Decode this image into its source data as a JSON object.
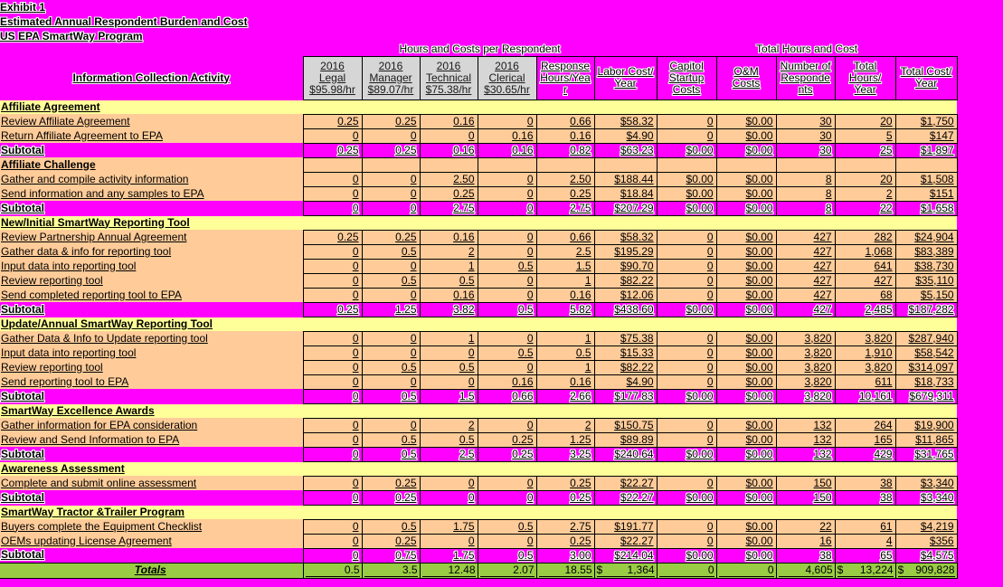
{
  "titles": [
    "Exhibit 1",
    "Estimated Annual Respondent Burden and Cost",
    "US EPA SmartWay Program"
  ],
  "colors": {
    "background": "#FF00FF",
    "section_row": "#FFFF99",
    "data_row": "#FFCC99",
    "subtotal_row": "#FF00FF",
    "totals_row": "#99CC44",
    "header_cell_bg": "#D6D6D6",
    "border": "#000000"
  },
  "table": {
    "span_headers": [
      {
        "label": "Hours and Costs per Respondent",
        "span": 6
      },
      {
        "label": "Total Hours and Cost",
        "span": 5
      }
    ],
    "columns": [
      {
        "label": "Information Collection Activity"
      },
      {
        "label": "2016 Legal $95.98/hr"
      },
      {
        "label": "2016 Manager $89.07/hr"
      },
      {
        "label": "2016 Technical $75.38/hr"
      },
      {
        "label": "2016 Clerical $30.65/hr"
      },
      {
        "label": "Response Hours/Year"
      },
      {
        "label": "Labor Cost/ Year"
      },
      {
        "label": "Capitol Startup Costs"
      },
      {
        "label": "O&M Costs"
      },
      {
        "label": "Number of Respondents"
      },
      {
        "label": "Total Hours/ Year"
      },
      {
        "label": "Total Cost/ Year"
      }
    ],
    "rows": [
      {
        "type": "section",
        "style": "yellow",
        "label": "Affiliate Agreement"
      },
      {
        "type": "item",
        "label": "Review Affiliate Agreement",
        "values": [
          "0.25",
          "0.25",
          "0.16",
          "0",
          "0.66",
          "$58.32",
          "0",
          "$0.00",
          "30",
          "20",
          "$1,750"
        ]
      },
      {
        "type": "item",
        "label": "Return Affiliate Agreement to EPA",
        "values": [
          "0",
          "0",
          "0",
          "0.16",
          "0.16",
          "$4.90",
          "0",
          "$0.00",
          "30",
          "5",
          "$147"
        ]
      },
      {
        "type": "subtotal",
        "label": "Subtotal",
        "values": [
          "0.25",
          "0.25",
          "0.16",
          "0.16",
          "0.82",
          "$63.23",
          "$0.00",
          "$0.00",
          "30",
          "25",
          "$1,897"
        ]
      },
      {
        "type": "section",
        "style": "peach",
        "label": "Affiliate Challenge"
      },
      {
        "type": "item",
        "label": "Gather and compile activity information",
        "values": [
          "0",
          "0",
          "2.50",
          "0",
          "2.50",
          "$188.44",
          "$0.00",
          "$0.00",
          "8",
          "20",
          "$1,508"
        ]
      },
      {
        "type": "item",
        "label": "Send information and any samples to EPA",
        "values": [
          "0",
          "0",
          "0.25",
          "0",
          "0.25",
          "$18.84",
          "$0.00",
          "$0.00",
          "8",
          "2",
          "$151"
        ]
      },
      {
        "type": "subtotal",
        "label": "Subtotal",
        "values": [
          "0",
          "0",
          "2.75",
          "0",
          "2.75",
          "$207.29",
          "$0.00",
          "$0.00",
          "8",
          "22",
          "$1,658"
        ]
      },
      {
        "type": "section",
        "style": "yellow",
        "label": "New/Initial SmartWay Reporting Tool"
      },
      {
        "type": "item",
        "label": "Review Partnership Annual Agreement",
        "values": [
          "0.25",
          "0.25",
          "0.16",
          "0",
          "0.66",
          "$58.32",
          "0",
          "$0.00",
          "427",
          "282",
          "$24,904"
        ]
      },
      {
        "type": "item",
        "label": "Gather data & info for reporting tool",
        "values": [
          "0",
          "0.5",
          "2",
          "0",
          "2.5",
          "$195.29",
          "0",
          "$0.00",
          "427",
          "1,068",
          "$83,389"
        ]
      },
      {
        "type": "item",
        "label": "Input data into reporting tool",
        "values": [
          "0",
          "0",
          "1",
          "0.5",
          "1.5",
          "$90.70",
          "0",
          "$0.00",
          "427",
          "641",
          "$38,730"
        ]
      },
      {
        "type": "item",
        "label": "Review reporting tool ",
        "values": [
          "0",
          "0.5",
          "0.5",
          "0",
          "1",
          "$82.22",
          "0",
          "$0.00",
          "427",
          "427",
          "$35,110"
        ]
      },
      {
        "type": "item",
        "label": "Send completed reporting tool to EPA",
        "values": [
          "0",
          "0",
          "0.16",
          "0",
          "0.16",
          "$12.06",
          "0",
          "$0.00",
          "427",
          "68",
          "$5,150"
        ]
      },
      {
        "type": "subtotal",
        "label": "Subtotal",
        "values": [
          "0.25",
          "1.25",
          "3.82",
          "0.5",
          "5.82",
          "$438.60",
          "$0.00",
          "$0.00",
          "427",
          "2,485",
          "$187,282"
        ]
      },
      {
        "type": "section",
        "style": "yellow",
        "label": "Update/Annual SmartWay Reporting Tool"
      },
      {
        "type": "item",
        "label": "Gather Data & Info to Update reporting tool",
        "values": [
          "0",
          "0",
          "1",
          "0",
          "1",
          "$75.38",
          "0",
          "$0.00",
          "3,820",
          "3,820",
          "$287,940"
        ]
      },
      {
        "type": "item",
        "label": "Input data into reporting tool",
        "values": [
          "0",
          "0",
          "0",
          "0.5",
          "0.5",
          "$15.33",
          "0",
          "$0.00",
          "3,820",
          "1,910",
          "$58,542"
        ]
      },
      {
        "type": "item",
        "label": "Review reporting tool ",
        "values": [
          "0",
          "0.5",
          "0.5",
          "0",
          "1",
          "$82.22",
          "0",
          "$0.00",
          "3,820",
          "3,820",
          "$314,097"
        ]
      },
      {
        "type": "item",
        "label": "Send reporting tool to EPA",
        "values": [
          "0",
          "0",
          "0",
          "0.16",
          "0.16",
          "$4.90",
          "0",
          "$0.00",
          "3,820",
          "611",
          "$18,733"
        ]
      },
      {
        "type": "subtotal",
        "label": "Subtotal",
        "values": [
          "0",
          "0.5",
          "1.5",
          "0.66",
          "2.66",
          "$177.83",
          "$0.00",
          "$0.00",
          "3,820",
          "10,161",
          "$679,311"
        ]
      },
      {
        "type": "section",
        "style": "yellow",
        "label": "SmartWay Excellence Awards"
      },
      {
        "type": "item",
        "label": "Gather information for EPA consideration",
        "values": [
          "0",
          "0",
          "2",
          "0",
          "2",
          "$150.75",
          "0",
          "$0.00",
          "132",
          "264",
          "$19,900"
        ]
      },
      {
        "type": "item",
        "label": "Review and Send Information to EPA",
        "values": [
          "0",
          "0.5",
          "0.5",
          "0.25",
          "1.25",
          "$89.89",
          "0",
          "$0.00",
          "132",
          "165",
          "$11,865"
        ]
      },
      {
        "type": "subtotal",
        "label": "Subtotal",
        "values": [
          "0",
          "0.5",
          "2.5",
          "0.25",
          "3.25",
          "$240.64",
          "$0.00",
          "$0.00",
          "132",
          "429",
          "$31,765"
        ]
      },
      {
        "type": "section",
        "style": "yellow",
        "label": "Awareness Assessment"
      },
      {
        "type": "item",
        "label": "Complete and submit online assessment",
        "values": [
          "0",
          "0.25",
          "0",
          "0",
          "0.25",
          "$22.27",
          "0",
          "$0.00",
          "150",
          "38",
          "$3,340"
        ]
      },
      {
        "type": "subtotal",
        "label": "Subtotal",
        "values": [
          "0",
          "0.25",
          "0",
          "0",
          "0.25",
          "$22.27",
          "$0.00",
          "$0.00",
          "150",
          "38",
          "$3,340"
        ]
      },
      {
        "type": "section",
        "style": "yellow",
        "label": "SmartWay Tractor &Trailer Program"
      },
      {
        "type": "item",
        "label": "Buyers complete the Equipment Checklist",
        "values": [
          "0",
          "0.5",
          "1.75",
          "0.5",
          "2.75",
          "$191.77",
          "0",
          "$0.00",
          "22",
          "61",
          "$4,219"
        ]
      },
      {
        "type": "item",
        "label": "OEMs updating License Agreement",
        "values": [
          "0",
          "0.25",
          "0",
          "0",
          "0.25",
          "$22.27",
          "0",
          "$0.00",
          "16",
          "4",
          "$356"
        ]
      },
      {
        "type": "subtotal",
        "label": "Subtotal",
        "values": [
          "0",
          "0.75",
          "1.75",
          "0.5",
          "3.00",
          "$214.04",
          "$0.00",
          "$0.00",
          "38",
          "65",
          "$4,575"
        ]
      },
      {
        "type": "totals",
        "label": "Totals",
        "values": [
          "0.5",
          "3.5",
          "12.48",
          "2.07",
          "18.55",
          "$ 1,364",
          "0",
          "0",
          "4,605",
          "$ 13,224",
          "$ 909,828"
        ]
      }
    ]
  }
}
